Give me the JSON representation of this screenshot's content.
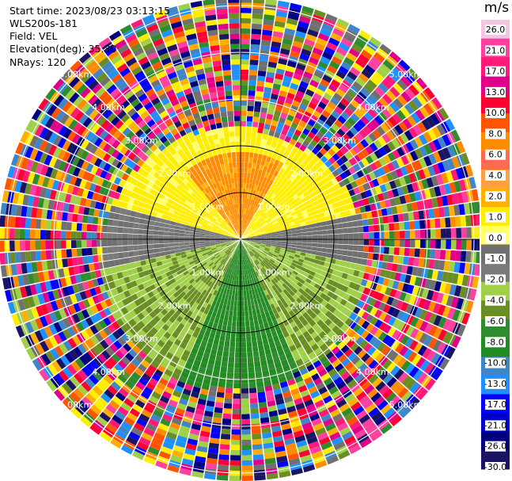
{
  "header": {
    "start_time": "Start time: 2023/08/23 03:13:15",
    "instrument": "WLS200s-181",
    "field": "Field: VEL",
    "elevation": "Elevation(deg): 35.30",
    "nrays": "NRays: 120"
  },
  "chart_data": {
    "type": "heatmap",
    "projection": "polar PPI",
    "field": "VEL",
    "unit": "m/s",
    "nrays": 120,
    "range_ring_labels": [
      "1.00km",
      "2.00km",
      "3.00km",
      "4.00km",
      "5.00km"
    ],
    "range_ring_km": [
      1,
      2,
      3,
      4,
      5
    ],
    "colorbar": {
      "unit": "m/s",
      "tick_labels": [
        "26.0",
        "21.0",
        "17.0",
        "13.0",
        "10.0",
        "8.0",
        "6.0",
        "4.0",
        "2.0",
        "1.0",
        "0.0",
        "-1.0",
        "-2.0",
        "-4.0",
        "-6.0",
        "-8.0",
        "-10.0",
        "-13.0",
        "-17.0",
        "-21.0",
        "-26.0",
        "-30.0"
      ],
      "colors": [
        "#f2c6e3",
        "#ff40a0",
        "#ff1a7a",
        "#e0008a",
        "#ff0033",
        "#ff5500",
        "#ff8c00",
        "#ff6a50",
        "#ffa040",
        "#ffb000",
        "#ffee00",
        "#ffff66",
        "#707070",
        "#7a7a7a",
        "#a0d048",
        "#6b8e23",
        "#2e8b2e",
        "#228b22",
        "#3f86c8",
        "#1e90ff",
        "#0000ff",
        "#0000cc",
        "#000080",
        "#1b1464"
      ]
    }
  }
}
